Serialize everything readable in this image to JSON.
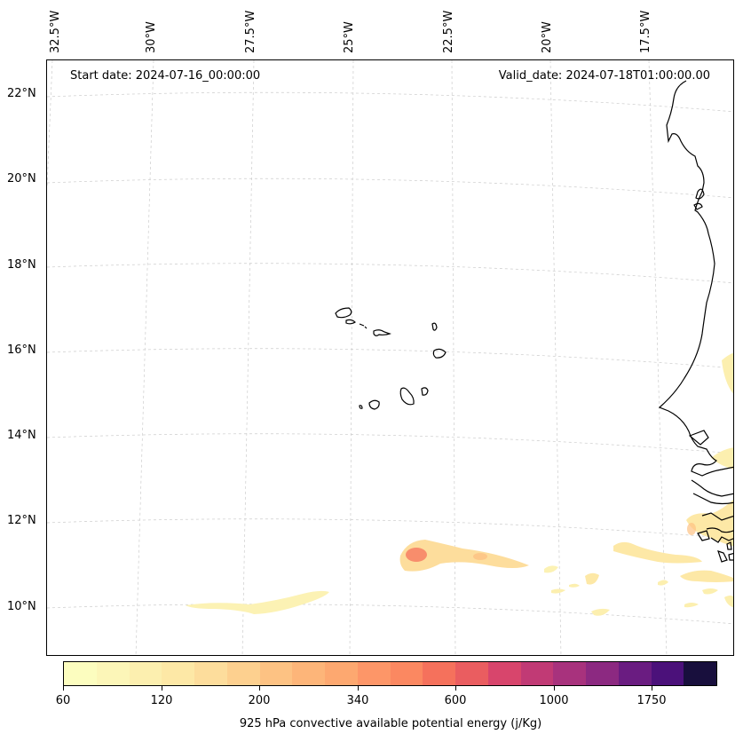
{
  "header": {
    "start_date": "Start date: 2024-07-16_00:00:00",
    "valid_date": "Valid_date: 2024-07-18T01:00:00.00"
  },
  "longitude_labels": [
    "32.5°W",
    "30°W",
    "27.5°W",
    "25°W",
    "22.5°W",
    "20°W",
    "17.5°W"
  ],
  "latitude_labels": [
    "22°N",
    "20°N",
    "18°N",
    "16°N",
    "14°N",
    "12°N",
    "10°N"
  ],
  "colorbar": {
    "label": "925 hPa convective available potential energy (j/Kg)",
    "tick_labels": [
      "60",
      "120",
      "200",
      "340",
      "600",
      "1000",
      "1750"
    ],
    "colors": [
      "#fcfdbf",
      "#fcf6b8",
      "#fcefaf",
      "#fde8a6",
      "#fddd9c",
      "#fdd08f",
      "#fdc283",
      "#fdb579",
      "#fda870",
      "#fd9668",
      "#fb8861",
      "#f5715c",
      "#ea5d60",
      "#d8456c",
      "#c13a75",
      "#a8327d",
      "#8c2981",
      "#6a1c81",
      "#4b117a",
      "#180f3d"
    ],
    "units": "j/Kg"
  },
  "map": {
    "projection": "Lambert conformal",
    "region": "Cape Verde and West African coast",
    "grid": true
  }
}
